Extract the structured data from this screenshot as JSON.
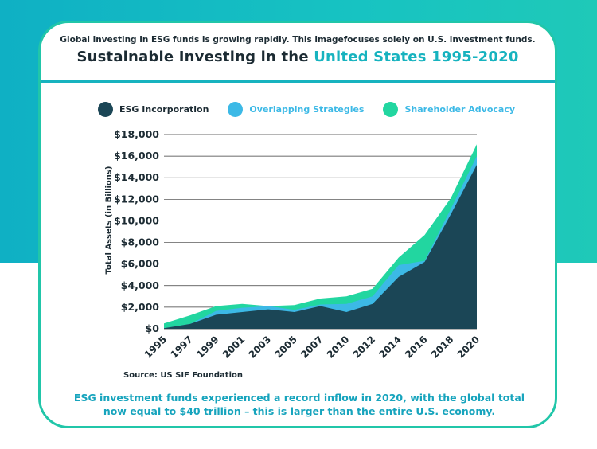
{
  "header": {
    "subtitle": "Global investing in ESG funds is growing rapidly. This imagefocuses solely on U.S. investment funds.",
    "title_main": "Sustainable Investing in the ",
    "title_accent": "United States 1995-2020"
  },
  "colors": {
    "esg": "#1b4656",
    "overlap": "#3cb9e6",
    "advocacy": "#22d6a0",
    "accent": "#17b3bf",
    "text": "#1c2b33"
  },
  "chart_data": {
    "type": "area",
    "stacked": true,
    "title": "Sustainable Investing in the United States 1995-2020",
    "xlabel": "",
    "ylabel": "Total Assets (in Billions)",
    "ylim": [
      0,
      18000
    ],
    "yticks": [
      "$0",
      "$2,000",
      "$4,000",
      "$6,000",
      "$8,000",
      "$10,000",
      "$12,000",
      "$14,000",
      "$16,000",
      "$18,000"
    ],
    "x": [
      "1995",
      "1997",
      "1999",
      "2001",
      "2003",
      "2005",
      "2007",
      "2010",
      "2012",
      "2014",
      "2016",
      "2018",
      "2020"
    ],
    "grid": true,
    "legend": "top",
    "series": [
      {
        "name": "ESG Incorporation",
        "values": [
          50,
          450,
          1300,
          1550,
          1800,
          1550,
          2100,
          1550,
          2300,
          4800,
          6200,
          10600,
          15200
        ]
      },
      {
        "name": "Overlapping Strategies",
        "values": [
          0,
          0,
          350,
          400,
          300,
          200,
          150,
          750,
          700,
          1100,
          100,
          500,
          800
        ]
      },
      {
        "name": "Shareholder Advocacy",
        "values": [
          450,
          800,
          450,
          350,
          0,
          450,
          550,
          700,
          700,
          700,
          2400,
          1000,
          1100
        ]
      }
    ]
  },
  "legend_labels": [
    "ESG Incorporation",
    "Overlapping Strategies",
    "Shareholder Advocacy"
  ],
  "source": "Source: US SIF Foundation",
  "footer_note": "ESG investment funds experienced a record inflow in 2020, with the global total now equal to $40 trillion – this is larger than the entire U.S. economy."
}
